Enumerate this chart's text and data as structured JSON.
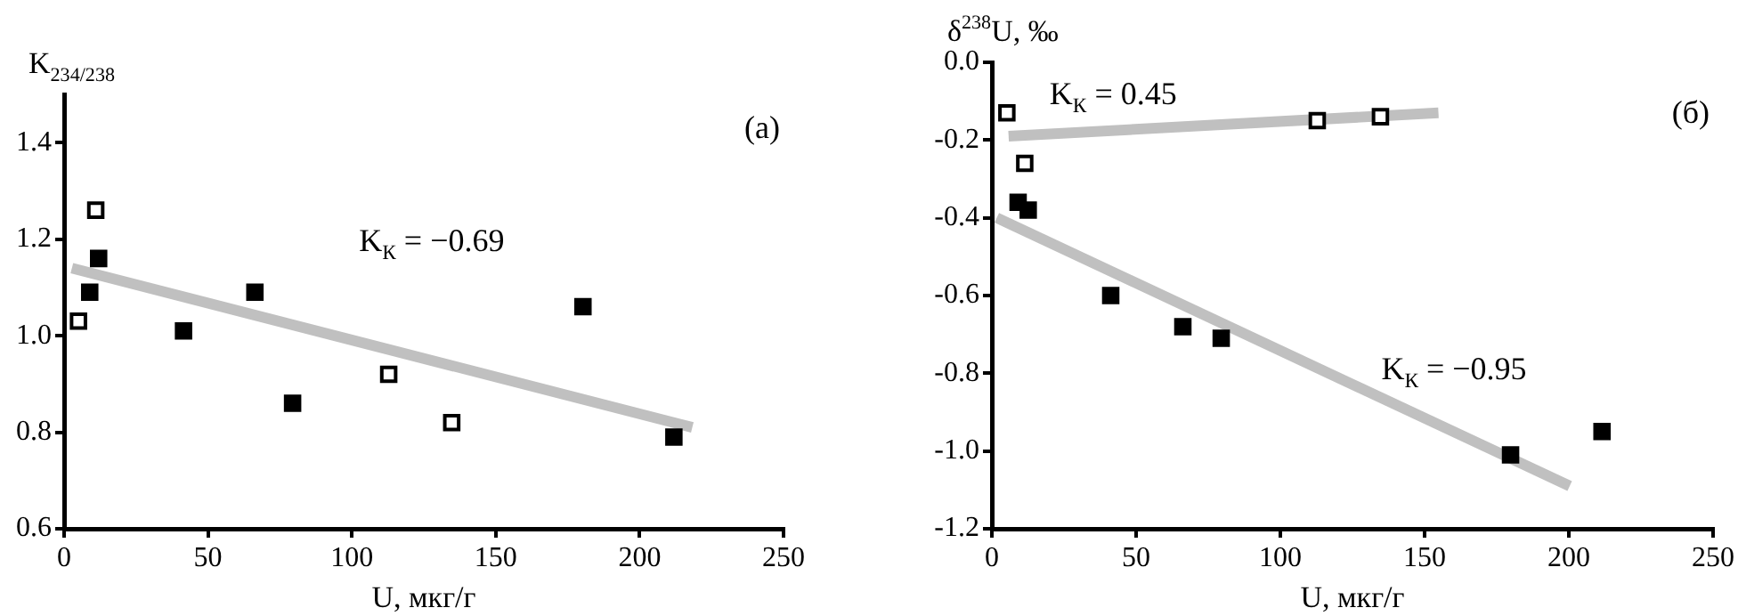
{
  "chart_data": [
    {
      "type": "scatter",
      "xlabel": "U, мкг/г",
      "ylabel": "K$_{234/238}$",
      "xlim": [
        0,
        250
      ],
      "xticks": [
        0,
        50,
        100,
        150,
        200,
        250
      ],
      "ylim": [
        0.6,
        1.5
      ],
      "yticks": [
        {
          "value": 0.6,
          "label": "0.6"
        },
        {
          "value": 0.8,
          "label": "0.8"
        },
        {
          "value": 1.0,
          "label": "1.0"
        },
        {
          "value": 1.2,
          "label": "1.2"
        },
        {
          "value": 1.4,
          "label": "1.4"
        }
      ],
      "grid": false,
      "legend": false,
      "marker": "square",
      "series": [
        {
          "color": "#000000",
          "x": [
            8.9,
            12,
            41.5,
            66.3,
            79.4,
            180.3,
            211.9
          ],
          "values": [
            1.09,
            1.16,
            1.01,
            1.09,
            0.86,
            1.06,
            0.79
          ]
        },
        {
          "color": "#ffffff",
          "x": [
            5.0,
            11,
            112.8,
            134.7
          ],
          "values": [
            1.03,
            1.26,
            0.92,
            0.82
          ]
        },
        {
          "type": "line",
          "marker": "none",
          "color": "#c0c0c0",
          "x": [
            2.7,
            218.3
          ],
          "values": [
            1.14,
            0.81
          ]
        }
      ],
      "annotations": [
        "K$_{К}$ = −0.69",
        "(а)"
      ]
    },
    {
      "type": "scatter",
      "xlabel": "U, мкг/г",
      "ylabel": "δ$^{238}$U, ‰",
      "xlim": [
        0,
        250
      ],
      "xticks": [
        0,
        50,
        100,
        150,
        200,
        250
      ],
      "ylim": [
        -1.2,
        0
      ],
      "yticks": [
        {
          "value": -1.2,
          "label": "-1.2"
        },
        {
          "value": -1.0,
          "label": "-1.0"
        },
        {
          "value": -0.8,
          "label": "-0.8"
        },
        {
          "value": -0.6,
          "label": "-0.6"
        },
        {
          "value": -0.4,
          "label": "-0.4"
        },
        {
          "value": -0.2,
          "label": "-0.2"
        },
        {
          "value": 0,
          "label": "0.0"
        }
      ],
      "grid": false,
      "legend": false,
      "marker": "square",
      "series": [
        {
          "color": "#000000",
          "x": [
            9.1,
            12.6,
            41.2,
            66.2,
            79.5,
            179.8,
            211.5
          ],
          "values": [
            -0.36,
            -0.38,
            -0.6,
            -0.68,
            -0.71,
            -1.01,
            -0.95
          ]
        },
        {
          "color": "#ffffff",
          "x": [
            5.2,
            11.4,
            112.8,
            134.7
          ],
          "values": [
            -0.13,
            -0.26,
            -0.15,
            -0.14
          ]
        },
        {
          "type": "line",
          "marker": "none",
          "color": "#c0c0c0",
          "x": [
            5.8,
            154.8
          ],
          "values": [
            -0.19,
            -0.13
          ]
        },
        {
          "type": "line",
          "marker": "none",
          "color": "#c0c0c0",
          "x": [
            1.7,
            200.3
          ],
          "values": [
            -0.4,
            -1.09
          ]
        }
      ],
      "annotations": [
        "K$_{К}$ = 0.45",
        "K$_{К}$ = −0.95",
        "(б)"
      ]
    }
  ]
}
